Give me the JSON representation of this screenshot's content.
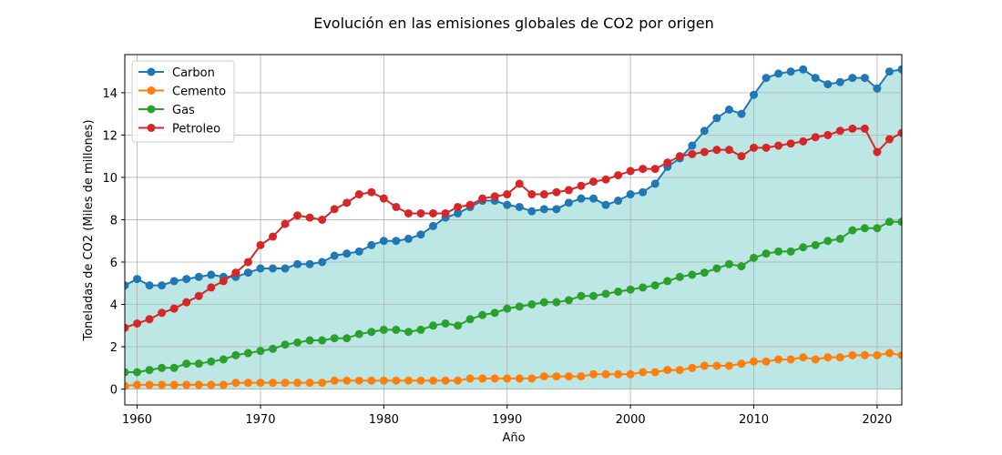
{
  "chart_data": {
    "type": "line",
    "title": "Evolución en las emisiones globales de CO2 por origen",
    "xlabel": "Año",
    "ylabel": "Toneladas de CO2 (Miles de millones)",
    "xlim": [
      1959,
      2022
    ],
    "ylim": [
      -0.75,
      15.8
    ],
    "xticks": [
      1960,
      1970,
      1980,
      1990,
      2000,
      2010,
      2020
    ],
    "yticks": [
      0,
      2,
      4,
      6,
      8,
      10,
      12,
      14
    ],
    "grid": true,
    "legend_position": "top-left",
    "fill_color": "#bde7e5",
    "x": [
      1959,
      1960,
      1961,
      1962,
      1963,
      1964,
      1965,
      1966,
      1967,
      1968,
      1969,
      1970,
      1971,
      1972,
      1973,
      1974,
      1975,
      1976,
      1977,
      1978,
      1979,
      1980,
      1981,
      1982,
      1983,
      1984,
      1985,
      1986,
      1987,
      1988,
      1989,
      1990,
      1991,
      1992,
      1993,
      1994,
      1995,
      1996,
      1997,
      1998,
      1999,
      2000,
      2001,
      2002,
      2003,
      2004,
      2005,
      2006,
      2007,
      2008,
      2009,
      2010,
      2011,
      2012,
      2013,
      2014,
      2015,
      2016,
      2017,
      2018,
      2019,
      2020,
      2021,
      2022
    ],
    "series": [
      {
        "name": "Carbon",
        "color": "#1f77b4",
        "values": [
          4.9,
          5.2,
          4.9,
          4.9,
          5.1,
          5.2,
          5.3,
          5.4,
          5.3,
          5.3,
          5.5,
          5.7,
          5.7,
          5.7,
          5.9,
          5.9,
          6.0,
          6.3,
          6.4,
          6.5,
          6.8,
          7.0,
          7.0,
          7.1,
          7.3,
          7.7,
          8.1,
          8.3,
          8.6,
          8.9,
          8.9,
          8.7,
          8.6,
          8.4,
          8.5,
          8.5,
          8.8,
          9.0,
          9.0,
          8.7,
          8.9,
          9.2,
          9.3,
          9.7,
          10.5,
          10.9,
          11.5,
          12.2,
          12.8,
          13.2,
          13.0,
          13.9,
          14.7,
          14.9,
          15.0,
          15.1,
          14.7,
          14.4,
          14.5,
          14.7,
          14.7,
          14.2,
          15.0,
          15.1
        ]
      },
      {
        "name": "Cemento",
        "color": "#ff7f0e",
        "values": [
          0.15,
          0.2,
          0.2,
          0.2,
          0.2,
          0.2,
          0.2,
          0.2,
          0.2,
          0.3,
          0.3,
          0.3,
          0.3,
          0.3,
          0.3,
          0.3,
          0.3,
          0.4,
          0.4,
          0.4,
          0.4,
          0.4,
          0.4,
          0.4,
          0.4,
          0.4,
          0.4,
          0.4,
          0.5,
          0.5,
          0.5,
          0.5,
          0.5,
          0.5,
          0.6,
          0.6,
          0.6,
          0.6,
          0.7,
          0.7,
          0.7,
          0.7,
          0.8,
          0.8,
          0.9,
          0.9,
          1.0,
          1.1,
          1.1,
          1.1,
          1.2,
          1.3,
          1.3,
          1.4,
          1.4,
          1.5,
          1.4,
          1.5,
          1.5,
          1.6,
          1.6,
          1.6,
          1.7,
          1.6
        ]
      },
      {
        "name": "Gas",
        "color": "#2ca02c",
        "values": [
          0.8,
          0.8,
          0.9,
          1.0,
          1.0,
          1.2,
          1.2,
          1.3,
          1.4,
          1.6,
          1.7,
          1.8,
          1.9,
          2.1,
          2.2,
          2.3,
          2.3,
          2.4,
          2.4,
          2.6,
          2.7,
          2.8,
          2.8,
          2.7,
          2.8,
          3.0,
          3.1,
          3.0,
          3.3,
          3.5,
          3.6,
          3.8,
          3.9,
          4.0,
          4.1,
          4.1,
          4.2,
          4.4,
          4.4,
          4.5,
          4.6,
          4.7,
          4.8,
          4.9,
          5.1,
          5.3,
          5.4,
          5.5,
          5.7,
          5.9,
          5.8,
          6.2,
          6.4,
          6.5,
          6.5,
          6.7,
          6.8,
          7.0,
          7.1,
          7.5,
          7.6,
          7.6,
          7.9,
          7.9
        ]
      },
      {
        "name": "Petroleo",
        "color": "#d62728",
        "values": [
          2.9,
          3.1,
          3.3,
          3.6,
          3.8,
          4.1,
          4.4,
          4.8,
          5.1,
          5.5,
          6.0,
          6.8,
          7.2,
          7.8,
          8.2,
          8.1,
          8.0,
          8.5,
          8.8,
          9.2,
          9.3,
          9.0,
          8.6,
          8.3,
          8.3,
          8.3,
          8.3,
          8.6,
          8.7,
          9.0,
          9.1,
          9.2,
          9.7,
          9.2,
          9.2,
          9.3,
          9.4,
          9.6,
          9.8,
          9.9,
          10.1,
          10.3,
          10.4,
          10.4,
          10.7,
          11.0,
          11.1,
          11.2,
          11.3,
          11.3,
          11.0,
          11.4,
          11.4,
          11.5,
          11.6,
          11.7,
          11.9,
          12.0,
          12.2,
          12.3,
          12.3,
          11.2,
          11.8,
          12.1
        ]
      }
    ]
  }
}
